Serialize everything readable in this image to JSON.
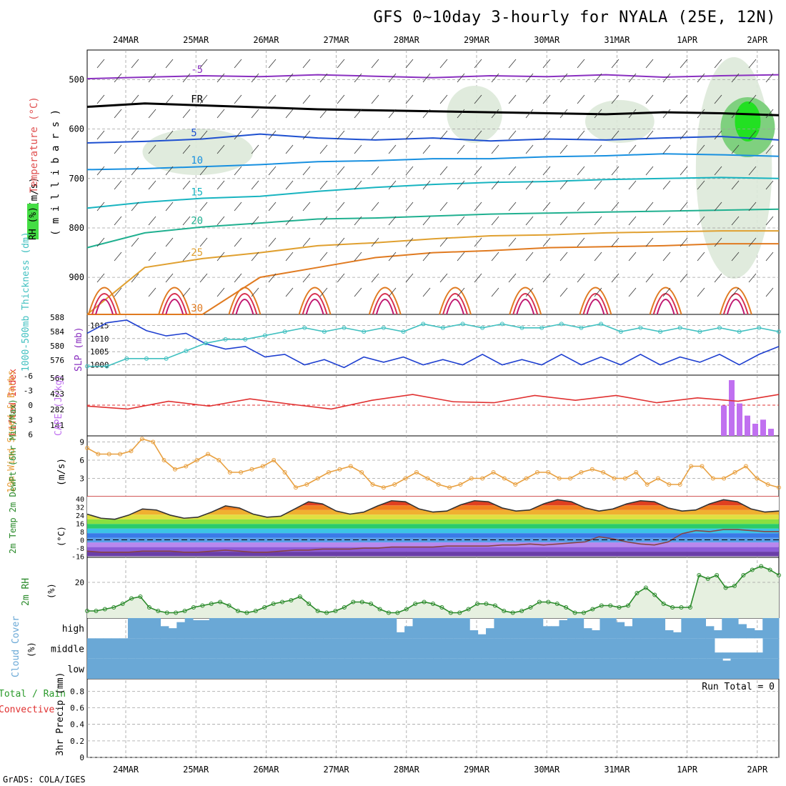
{
  "title": "GFS 0~10day 3-hourly for NYALA (25E, 12N)",
  "credit": "GrADS: COLA/IGES",
  "run_total": "Run Total = 0",
  "colors": {
    "frame": "#000000",
    "grid": "#a0a0a0",
    "rh_fill": "#dde9d9",
    "wind_speed": "#e8a040",
    "thickness": "#40c0c0",
    "slp": "#1e3fd0",
    "lifted_index": "#e03030",
    "cape": "#c070f0",
    "rh2m": "#2a8a2a",
    "cloud": "#6aa8d6",
    "dewpoint": "#884444"
  },
  "chart_data": [
    {
      "type": "line",
      "panel": "upper-air",
      "side_labels": [
        "RH (%)",
        "Temperature (°C)",
        "Wind (m/s)"
      ],
      "ylabel": "( m i l l i b a r s )",
      "x_dates": [
        "24MAR",
        "25MAR",
        "26MAR",
        "27MAR",
        "28MAR",
        "29MAR",
        "30MAR",
        "31MAR",
        "1APR",
        "2APR"
      ],
      "yticks": [
        500,
        600,
        700,
        800,
        900
      ],
      "ylim": [
        440,
        975
      ],
      "isotherm_labels": [
        "-5",
        "-5",
        "FR",
        "FR",
        "5",
        "5",
        "10",
        "10",
        "15",
        "15",
        "20",
        "25",
        "30"
      ],
      "rh_labels": [
        "10",
        "30",
        "10",
        "10",
        "30",
        "30"
      ],
      "isotherms": [
        {
          "label": "-5",
          "color": "#8a30c0",
          "p": [
            498,
            495,
            492,
            494,
            490,
            493,
            496,
            492,
            494,
            490,
            495,
            492,
            490
          ]
        },
        {
          "label": "FR",
          "color": "#000000",
          "p": [
            555,
            548,
            552,
            556,
            560,
            562,
            564,
            566,
            568,
            570,
            566,
            568,
            572
          ]
        },
        {
          "label": "5",
          "color": "#1e50d0",
          "p": [
            628,
            625,
            620,
            610,
            618,
            622,
            618,
            624,
            620,
            622,
            618,
            615,
            622
          ]
        },
        {
          "label": "10",
          "color": "#1890e0",
          "p": [
            682,
            680,
            676,
            672,
            666,
            664,
            660,
            660,
            656,
            654,
            650,
            652,
            655
          ]
        },
        {
          "label": "15",
          "color": "#18b4c0",
          "p": [
            760,
            748,
            740,
            736,
            726,
            718,
            712,
            708,
            706,
            702,
            700,
            698,
            700
          ]
        },
        {
          "label": "20",
          "color": "#20b090",
          "p": [
            840,
            810,
            798,
            790,
            782,
            780,
            776,
            772,
            770,
            768,
            766,
            764,
            762
          ]
        },
        {
          "label": "25",
          "color": "#e0a030",
          "p": [
            975,
            880,
            862,
            850,
            836,
            830,
            822,
            816,
            814,
            810,
            808,
            806,
            806
          ]
        },
        {
          "label": "30",
          "color": "#e07a20",
          "p": [
            975,
            975,
            975,
            900,
            880,
            860,
            850,
            846,
            840,
            838,
            836,
            832,
            832
          ]
        }
      ]
    },
    {
      "type": "line",
      "panel": "thickness-slp",
      "left_label": "1000-500mb Thickness (dm)",
      "right_label": "SLP (mb)",
      "thickness_ticks": [
        "588",
        "584",
        "580",
        "576"
      ],
      "slp_ticks": [
        "1015",
        "1010",
        "1005",
        "1000"
      ],
      "series": [
        {
          "name": "SLP",
          "values": [
            1012,
            1016,
            1017,
            1013,
            1011,
            1012,
            1008,
            1006,
            1007,
            1003,
            1004,
            1000,
            1002,
            999,
            1003,
            1001,
            1003,
            1000,
            1002,
            1000,
            1004,
            1000,
            1002,
            1000,
            1004,
            1000,
            1003,
            1000,
            1004,
            1000,
            1003,
            1001,
            1004,
            1000,
            1004,
            1007
          ]
        },
        {
          "name": "Thickness",
          "values": [
            576,
            576,
            578,
            578,
            578,
            580,
            582,
            583,
            583,
            584,
            585,
            586,
            585,
            586,
            585,
            586,
            585,
            587,
            586,
            587,
            586,
            587,
            586,
            586,
            587,
            586,
            587,
            585,
            586,
            585,
            586,
            585,
            586,
            585,
            586,
            585
          ]
        }
      ]
    },
    {
      "type": "bar",
      "panel": "stability",
      "left_label": "Lifted Index",
      "right_label": "CAPE (J/kg)",
      "li_ticks": [
        "-6",
        "-3",
        "0",
        "3",
        "6"
      ],
      "cape_ticks": [
        "564",
        "423",
        "282",
        "141"
      ],
      "cape_values": [
        0,
        0,
        0,
        0,
        0,
        0,
        0,
        0,
        0,
        0,
        0,
        0,
        0,
        0,
        0,
        0,
        0,
        0,
        0,
        0,
        0,
        0,
        0,
        0,
        0,
        0,
        0,
        0,
        0,
        0,
        0,
        0,
        0,
        0,
        0,
        0,
        0,
        0,
        0,
        0,
        0,
        0,
        0,
        0,
        0,
        0,
        0,
        0,
        0,
        0,
        0,
        0,
        0,
        0,
        0,
        0,
        0,
        0,
        0,
        0,
        0,
        0,
        0,
        0,
        0,
        0,
        0,
        0,
        0,
        0,
        0,
        0,
        0,
        0,
        0,
        0,
        0,
        0,
        0,
        0,
        0,
        300,
        550,
        320,
        200,
        120,
        160,
        70,
        0
      ],
      "li_values": [
        0.2,
        0.8,
        -0.8,
        0.2,
        -1.3,
        -0.2,
        0.8,
        -1.0,
        -2.2,
        -0.7,
        -0.5,
        -2.0,
        -1.0,
        -2.0,
        -0.5,
        -1.5,
        -0.8,
        -2.2
      ]
    },
    {
      "type": "line",
      "panel": "wind10m",
      "left_label": "10m Wind Speed & Barbs",
      "unit": "(m/s)",
      "yticks": [
        3,
        6,
        9
      ],
      "ylim": [
        0,
        10
      ],
      "values": [
        8,
        7,
        7,
        7,
        7.5,
        9.5,
        9,
        6,
        4.5,
        5,
        6,
        7,
        6,
        4,
        4,
        4.5,
        5,
        6,
        4,
        1.5,
        2,
        3,
        4,
        4.5,
        5,
        4,
        2,
        1.5,
        2,
        3,
        4,
        3,
        2,
        1.5,
        2,
        3,
        3,
        4,
        3,
        2,
        3,
        4,
        4,
        3,
        3,
        4,
        4.5,
        4,
        3,
        3,
        4,
        2,
        3,
        2,
        2,
        5,
        5,
        3,
        3,
        4,
        5,
        3,
        2,
        1.5
      ]
    },
    {
      "type": "line",
      "panel": "temp2m",
      "left_label": "2m Temp 2m DewPt (6hr Min/Max)",
      "unit": "(°C)",
      "yticks": [
        -16,
        -8,
        0,
        8,
        16,
        24,
        32,
        40
      ],
      "ylim": [
        -17,
        42
      ],
      "temperature": [
        25,
        21,
        20,
        24,
        30,
        29,
        24,
        21,
        22,
        27,
        33,
        31,
        25,
        22,
        23,
        30,
        37,
        35,
        28,
        25,
        27,
        33,
        38,
        37,
        30,
        27,
        28,
        34,
        38,
        37,
        31,
        28,
        29,
        35,
        39,
        37,
        31,
        28,
        30,
        35,
        38,
        37,
        31,
        28,
        29,
        35,
        39,
        37,
        30,
        27,
        28
      ],
      "dewpoint": [
        -11,
        -12,
        -12,
        -12,
        -11,
        -11,
        -11,
        -12,
        -12,
        -11,
        -10,
        -11,
        -12,
        -12,
        -11,
        -10,
        -10,
        -9,
        -9,
        -9,
        -8,
        -8,
        -7,
        -7,
        -7,
        -7,
        -6,
        -6,
        -6,
        -6,
        -5,
        -5,
        -4,
        -5,
        -4,
        -3,
        -2,
        3,
        1,
        -2,
        -4,
        -5,
        -2,
        6,
        9,
        8,
        10,
        10,
        9,
        8,
        8
      ]
    },
    {
      "type": "area",
      "panel": "rh2m",
      "left_label": "2m RH",
      "unit": "(%)",
      "yticks": [
        20
      ],
      "ylim": [
        0,
        34
      ],
      "values": [
        4,
        4,
        5,
        6,
        8,
        11,
        12,
        6,
        4,
        3,
        3,
        4,
        6,
        7,
        8,
        9,
        7,
        4,
        3,
        4,
        6,
        8,
        9,
        10,
        12,
        8,
        4,
        3,
        4,
        6,
        9,
        9,
        8,
        5,
        3,
        3,
        5,
        8,
        9,
        8,
        6,
        3,
        3,
        5,
        8,
        8,
        7,
        4,
        3,
        4,
        6,
        9,
        9,
        8,
        6,
        3,
        3,
        5,
        7,
        7,
        6,
        7,
        14,
        17,
        13,
        8,
        6,
        6,
        6,
        24,
        22,
        24,
        17,
        18,
        24,
        27,
        29,
        27,
        24
      ]
    },
    {
      "type": "heatmap",
      "panel": "cloud",
      "left_label": "Cloud Cover",
      "unit": "(%)",
      "levels": [
        "high",
        "middle",
        "low"
      ],
      "high": [
        0,
        0,
        0,
        0,
        0,
        1,
        1,
        1,
        1,
        0.6,
        0.5,
        0.8,
        1,
        0.9,
        0.9,
        1,
        1,
        1,
        1,
        1,
        1,
        1,
        1,
        1,
        1,
        1,
        1,
        1,
        1,
        1,
        1,
        1,
        1,
        1,
        1,
        1,
        1,
        1,
        0.3,
        0.6,
        1,
        1,
        1,
        1,
        1,
        1,
        1,
        0.4,
        0.2,
        0.5,
        1,
        1,
        1,
        1,
        1,
        1,
        0.6,
        0.6,
        0.9,
        1,
        1,
        0.5,
        0.4,
        1,
        1,
        0.8,
        0.6,
        1,
        1,
        1,
        1,
        0.4,
        0.3,
        1,
        1,
        1,
        0.6,
        0.4,
        1,
        1,
        0.7,
        0.5,
        0.4,
        1,
        1
      ],
      "middle": [
        1,
        1,
        1,
        1,
        1,
        1,
        1,
        1,
        1,
        1,
        1,
        1,
        1,
        1,
        1,
        1,
        1,
        1,
        1,
        1,
        1,
        1,
        1,
        1,
        1,
        1,
        1,
        1,
        1,
        1,
        1,
        1,
        1,
        1,
        1,
        1,
        1,
        1,
        1,
        1,
        1,
        1,
        1,
        1,
        1,
        1,
        1,
        1,
        1,
        1,
        1,
        1,
        1,
        1,
        1,
        1,
        1,
        1,
        1,
        1,
        1,
        1,
        1,
        1,
        1,
        1,
        1,
        1,
        1,
        1,
        1,
        1,
        1,
        1,
        1,
        1,
        1,
        1,
        0.3,
        0.3,
        0.3,
        0.3,
        0.3,
        0.3,
        1,
        1
      ],
      "low": [
        1,
        1,
        1,
        1,
        1,
        1,
        1,
        1,
        1,
        1,
        1,
        1,
        1,
        1,
        1,
        1,
        1,
        1,
        1,
        1,
        1,
        1,
        1,
        1,
        1,
        1,
        1,
        1,
        1,
        1,
        1,
        1,
        1,
        1,
        1,
        1,
        1,
        1,
        1,
        1,
        1,
        1,
        1,
        1,
        1,
        1,
        1,
        1,
        1,
        1,
        1,
        1,
        1,
        1,
        1,
        1,
        1,
        1,
        1,
        1,
        1,
        1,
        1,
        1,
        1,
        1,
        1,
        1,
        1,
        1,
        1,
        1,
        1,
        1,
        1,
        1,
        1,
        1,
        1,
        0.9,
        1,
        1,
        1,
        1,
        1,
        1
      ]
    },
    {
      "type": "bar",
      "panel": "precip",
      "left_label_1": "Total / Rain",
      "left_label_2": "Convective",
      "ylabel": "3hr Precip (mm)",
      "yticks": [
        "0",
        "0.2",
        "0.4",
        "0.6",
        "0.8"
      ],
      "ylim": [
        0,
        0.95
      ],
      "values": []
    }
  ]
}
